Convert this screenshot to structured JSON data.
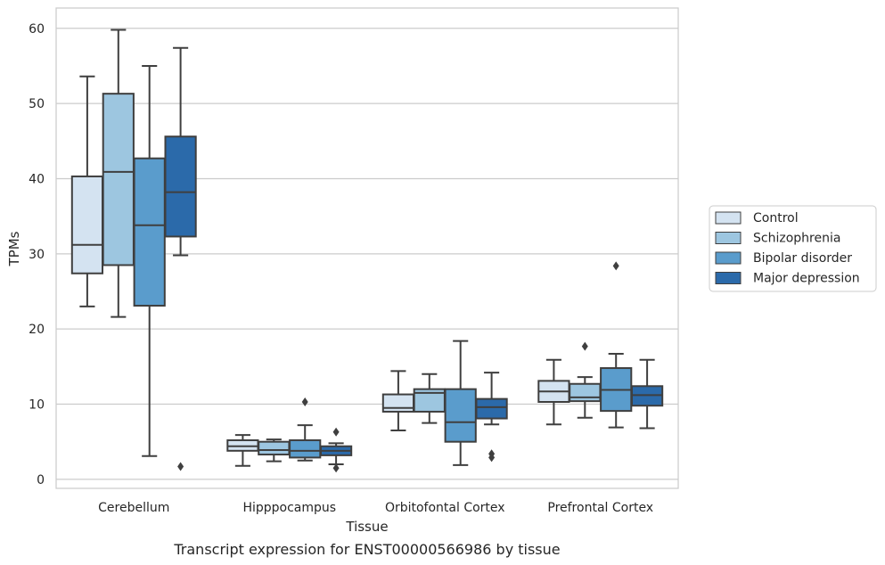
{
  "caption": "Transcript expression for ENST00000566986 by tissue",
  "chart_data": {
    "type": "boxplot",
    "xlabel": "Tissue",
    "ylabel": "TPMs",
    "ylim": [
      -1.2,
      62.7
    ],
    "yticks": [
      0,
      10,
      20,
      30,
      40,
      50,
      60
    ],
    "grid": "horizontal",
    "legend_position": "right",
    "categories": [
      "Cerebellum",
      "Hipppocampus",
      "Orbitofontal Cortex",
      "Prefrontal Cortex"
    ],
    "series": [
      {
        "name": "Control",
        "color": "#d4e3f1",
        "boxes": [
          {
            "whislo": 23.0,
            "q1": 27.4,
            "med": 31.2,
            "q3": 40.3,
            "whishi": 53.6,
            "fliers": []
          },
          {
            "whislo": 1.8,
            "q1": 3.8,
            "med": 4.4,
            "q3": 5.2,
            "whishi": 5.9,
            "fliers": []
          },
          {
            "whislo": 6.5,
            "q1": 9.0,
            "med": 9.5,
            "q3": 11.3,
            "whishi": 14.4,
            "fliers": []
          },
          {
            "whislo": 7.3,
            "q1": 10.3,
            "med": 11.7,
            "q3": 13.1,
            "whishi": 15.9,
            "fliers": []
          }
        ]
      },
      {
        "name": "Schizophrenia",
        "color": "#9dc6e0",
        "boxes": [
          {
            "whislo": 21.6,
            "q1": 28.5,
            "med": 40.9,
            "q3": 51.3,
            "whishi": 59.8,
            "fliers": []
          },
          {
            "whislo": 2.4,
            "q1": 3.3,
            "med": 3.9,
            "q3": 5.0,
            "whishi": 5.3,
            "fliers": []
          },
          {
            "whislo": 7.5,
            "q1": 9.0,
            "med": 11.5,
            "q3": 12.0,
            "whishi": 14.0,
            "fliers": []
          },
          {
            "whislo": 8.2,
            "q1": 10.4,
            "med": 10.9,
            "q3": 12.7,
            "whishi": 13.6,
            "fliers": [
              17.7
            ]
          }
        ]
      },
      {
        "name": "Bipolar disorder",
        "color": "#5a9ccc",
        "boxes": [
          {
            "whislo": 3.1,
            "q1": 23.1,
            "med": 33.8,
            "q3": 42.7,
            "whishi": 55.0,
            "fliers": []
          },
          {
            "whislo": 2.5,
            "q1": 2.9,
            "med": 3.8,
            "q3": 5.2,
            "whishi": 7.2,
            "fliers": [
              10.3
            ]
          },
          {
            "whislo": 1.9,
            "q1": 5.0,
            "med": 7.6,
            "q3": 12.0,
            "whishi": 18.4,
            "fliers": []
          },
          {
            "whislo": 6.9,
            "q1": 9.1,
            "med": 11.9,
            "q3": 14.8,
            "whishi": 16.7,
            "fliers": [
              28.4
            ]
          }
        ]
      },
      {
        "name": "Major depression",
        "color": "#2b6aaa",
        "boxes": [
          {
            "whislo": 29.8,
            "q1": 32.3,
            "med": 38.2,
            "q3": 45.6,
            "whishi": 57.4,
            "fliers": [
              1.7
            ]
          },
          {
            "whislo": 2.0,
            "q1": 3.2,
            "med": 3.8,
            "q3": 4.4,
            "whishi": 4.8,
            "fliers": [
              6.3,
              1.5
            ]
          },
          {
            "whislo": 7.3,
            "q1": 8.1,
            "med": 9.6,
            "q3": 10.7,
            "whishi": 14.2,
            "fliers": [
              3.4,
              2.9
            ]
          },
          {
            "whislo": 6.8,
            "q1": 9.8,
            "med": 11.2,
            "q3": 12.4,
            "whishi": 15.9,
            "fliers": []
          }
        ]
      }
    ]
  }
}
